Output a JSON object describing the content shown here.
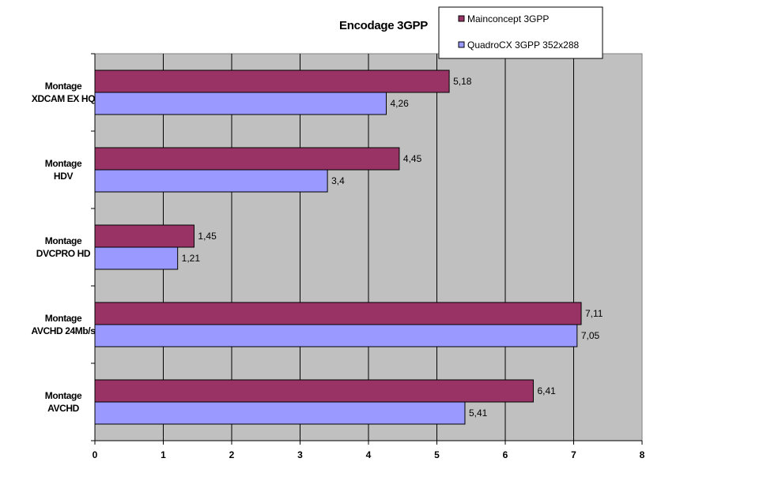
{
  "chart_data": {
    "type": "bar",
    "orientation": "horizontal",
    "title": "Encodage 3GPP",
    "categories": [
      [
        "Montage",
        "XDCAM EX HQ"
      ],
      [
        "Montage",
        "HDV"
      ],
      [
        "Montage",
        "DVCPRO HD"
      ],
      [
        "Montage",
        "AVCHD 24Mb/s"
      ],
      [
        "Montage",
        "AVCHD"
      ]
    ],
    "series": [
      {
        "name": "Mainconcept 3GPP",
        "color": "#993366",
        "values": [
          5.18,
          4.45,
          1.45,
          7.11,
          6.41
        ],
        "value_labels": [
          "5,18",
          "4,45",
          "1,45",
          "7,11",
          "6,41"
        ]
      },
      {
        "name": "QuadroCX 3GPP 352x288",
        "color": "#9999ff",
        "values": [
          4.26,
          3.4,
          1.21,
          7.05,
          5.41
        ],
        "value_labels": [
          "4,26",
          "3,4",
          "1,21",
          "7,05",
          "5,41"
        ]
      }
    ],
    "xlim": [
      0,
      8
    ],
    "x_ticks": [
      "0",
      "1",
      "2",
      "3",
      "4",
      "5",
      "6",
      "7",
      "8"
    ],
    "grid": true,
    "plot_background": "#c0c0c0",
    "legend_position": "top-right"
  }
}
